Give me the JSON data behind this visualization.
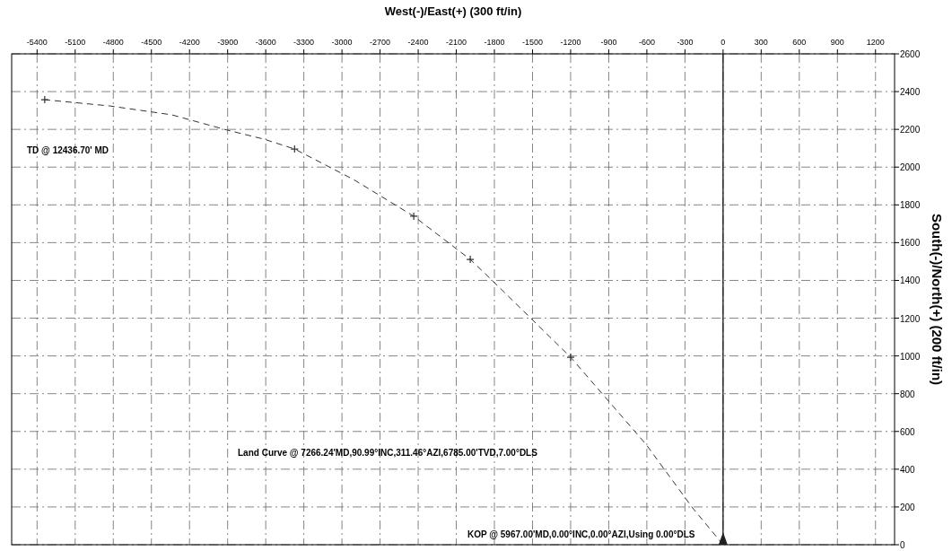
{
  "chart_data": {
    "type": "line",
    "xlabel": "West(-)/East(+) (300 ft/in)",
    "ylabel": "South(-)/North(+) (200 ft/in)",
    "xlim": [
      -5600,
      1350
    ],
    "ylim": [
      0,
      2600
    ],
    "xticks": [
      -5400,
      -5100,
      -4800,
      -4500,
      -4200,
      -3900,
      -3600,
      -3300,
      -3000,
      -2700,
      -2400,
      -2100,
      -1800,
      -1500,
      -1200,
      -900,
      -600,
      -300,
      0,
      300,
      600,
      900,
      1200
    ],
    "yticks": [
      0,
      200,
      400,
      600,
      800,
      1000,
      1200,
      1400,
      1600,
      1800,
      2000,
      2200,
      2400,
      2600
    ],
    "grid": true,
    "line_style": "dashed",
    "series": [
      {
        "color": "#333333",
        "x": [
          0,
          0,
          -240,
          -607,
          -1200,
          -1807,
          -1990,
          -2435,
          -2908,
          -3373,
          -3613,
          -3903,
          -4340,
          -4827,
          -5340
        ],
        "values": [
          0,
          0,
          195,
          532,
          993,
          1393,
          1511,
          1740,
          1934,
          2096,
          2148,
          2196,
          2277,
          2324,
          2357
        ]
      },
      {
        "type": "scatter",
        "marker": "cross",
        "color": "#333333",
        "x": [
          -5340,
          -3373,
          -2435,
          -1990,
          -1200
        ],
        "values": [
          2357,
          2096,
          1740,
          1511,
          993
        ]
      }
    ],
    "ref_lines": [
      {
        "axis": "x",
        "value": 0,
        "color": "#000000"
      }
    ],
    "annotations": [
      "TD @ 12436.70' MD",
      "Land Curve @ 7266.24'MD,90.99°INC,311.46°AZI,6785.00'TVD,7.00°DLS",
      "KOP @ 5967.00'MD,0.00°INC,0.00°AZI,Using 0.00°DLS"
    ]
  }
}
